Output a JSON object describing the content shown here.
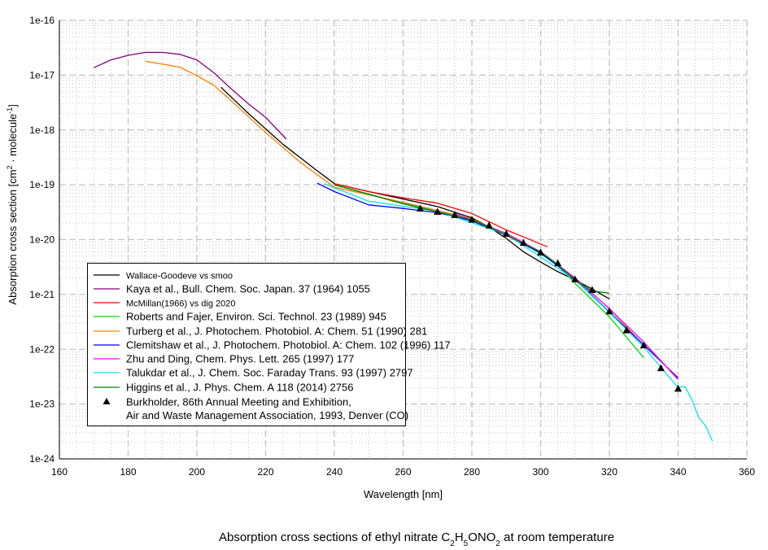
{
  "chart_data": {
    "type": "line",
    "title_parts": [
      "Absorption cross sections of ethyl nitrate C",
      "2",
      "H",
      "5",
      "ONO",
      "2",
      " at room temperature"
    ],
    "xlabel": "Wavelength [nm]",
    "ylabel_parts": [
      "Absorption cross section [cm",
      "2",
      " · molecule",
      "-1",
      "]"
    ],
    "xlim": [
      160,
      360
    ],
    "ylim": [
      1e-24,
      1e-16
    ],
    "yscale": "log",
    "x_ticks": [
      160,
      180,
      200,
      220,
      240,
      260,
      280,
      300,
      320,
      340,
      360
    ],
    "y_ticks": [
      "1e-16",
      "1e-17",
      "1e-18",
      "1e-19",
      "1e-20",
      "1e-21",
      "1e-22",
      "1e-23",
      "1e-24"
    ],
    "grid": true,
    "legend_placement": "lower-left",
    "series": [
      {
        "name": "Wallace-Goodeve vs smoo",
        "color": "#000000",
        "small": true,
        "points": [
          [
            207,
            6e-18
          ],
          [
            215,
            2e-18
          ],
          [
            225,
            5.5e-19
          ],
          [
            235,
            1.8e-19
          ],
          [
            240,
            1.05e-19
          ],
          [
            250,
            7.5e-20
          ],
          [
            260,
            5.5e-20
          ],
          [
            270,
            4e-20
          ],
          [
            280,
            2.5e-20
          ],
          [
            285,
            1.7e-20
          ],
          [
            290,
            1.05e-20
          ],
          [
            295,
            6e-21
          ],
          [
            300,
            3.9e-21
          ],
          [
            305,
            2.6e-21
          ],
          [
            310,
            1.85e-21
          ],
          [
            315,
            1.25e-21
          ],
          [
            320,
            8.3e-22
          ]
        ]
      },
      {
        "name": "Kaya et al., Bull. Chem. Soc. Japan. 37 (1964) 1055",
        "color": "#800080",
        "points": [
          [
            170,
            1.37e-17
          ],
          [
            175,
            1.9e-17
          ],
          [
            180,
            2.3e-17
          ],
          [
            185,
            2.6e-17
          ],
          [
            190,
            2.6e-17
          ],
          [
            195,
            2.4e-17
          ],
          [
            200,
            1.9e-17
          ],
          [
            205,
            1.1e-17
          ],
          [
            210,
            5.6e-18
          ],
          [
            215,
            3e-18
          ],
          [
            220,
            1.7e-18
          ],
          [
            226,
            6.8e-19
          ]
        ]
      },
      {
        "name": "McMillan(1966) vs dig 2020",
        "color": "#ff0000",
        "small": true,
        "points": [
          [
            240,
            1.05e-19
          ],
          [
            250,
            7.5e-20
          ],
          [
            260,
            5.8e-20
          ],
          [
            270,
            4.6e-20
          ],
          [
            280,
            3e-20
          ],
          [
            290,
            1.5e-20
          ],
          [
            302,
            7.4e-21
          ]
        ]
      },
      {
        "name": "Roberts and Fajer, Environ. Sci. Technol. 23 (1989) 945",
        "color": "#00dd00",
        "points": [
          [
            240,
            1e-19
          ],
          [
            260,
            4.6e-20
          ],
          [
            280,
            2.3e-20
          ],
          [
            290,
            1.3e-20
          ],
          [
            300,
            5.5e-21
          ],
          [
            305,
            3.4e-21
          ],
          [
            310,
            1.6e-21
          ],
          [
            320,
            3.9e-22
          ],
          [
            330,
            7e-23
          ]
        ]
      },
      {
        "name": "Turberg et al., J. Photochem. Photobiol. A: Chem. 51 (1990) 281",
        "color": "#ff8000",
        "points": [
          [
            185,
            1.8e-17
          ],
          [
            195,
            1.4e-17
          ],
          [
            200,
            9.8e-18
          ],
          [
            205,
            6.5e-18
          ],
          [
            210,
            3.4e-18
          ],
          [
            220,
            9e-19
          ],
          [
            230,
            2.6e-19
          ],
          [
            240,
            9e-20
          ],
          [
            260,
            4.8e-20
          ],
          [
            280,
            2.4e-20
          ],
          [
            300,
            6e-21
          ],
          [
            310,
            2e-21
          ],
          [
            320,
            5.5e-22
          ],
          [
            328,
            1.6e-22
          ]
        ]
      },
      {
        "name": "Clemitshaw et al., J. Photochem. Photobiol. A: Chem. 102 (1996) 117",
        "color": "#0000ff",
        "points": [
          [
            235,
            1.07e-19
          ],
          [
            240,
            7.5e-20
          ],
          [
            250,
            4.3e-20
          ],
          [
            260,
            3.7e-20
          ],
          [
            270,
            3.1e-20
          ],
          [
            280,
            2.2e-20
          ],
          [
            290,
            1.2e-20
          ],
          [
            300,
            5.7e-21
          ],
          [
            310,
            1.9e-21
          ],
          [
            320,
            4.8e-22
          ],
          [
            330,
            1.2e-22
          ],
          [
            340,
            3e-23
          ]
        ]
      },
      {
        "name": "Zhu and Ding, Chem. Phys. Lett. 265 (1997) 177",
        "color": "#ff00ff",
        "points": [
          [
            275,
            3e-20
          ],
          [
            290,
            1.3e-20
          ],
          [
            300,
            6e-21
          ],
          [
            310,
            2e-21
          ],
          [
            320,
            5.5e-22
          ],
          [
            330,
            1.35e-22
          ],
          [
            340,
            2.8e-23
          ]
        ]
      },
      {
        "name": "Talukdar et al., J. Chem. Soc. Faraday Trans. 93 (1997) 2797",
        "color": "#00e5ee",
        "points": [
          [
            237,
            1.05e-19
          ],
          [
            250,
            5e-20
          ],
          [
            270,
            3.3e-20
          ],
          [
            290,
            1.25e-20
          ],
          [
            310,
            1.85e-21
          ],
          [
            320,
            4.7e-22
          ],
          [
            330,
            1.1e-22
          ],
          [
            340,
            2e-23
          ],
          [
            342,
            2.1e-23
          ],
          [
            344,
            1.2e-23
          ],
          [
            346,
            5.7e-24
          ],
          [
            348,
            4e-24
          ],
          [
            350,
            2.1e-24
          ]
        ]
      },
      {
        "name": "Higgins et al., J. Phys. Chem. A 118 (2014) 2756",
        "color": "#008000",
        "points": [
          [
            240,
            1e-19
          ],
          [
            260,
            4.5e-20
          ],
          [
            280,
            2.3e-20
          ],
          [
            285,
            1.7e-20
          ],
          [
            290,
            1.2e-20
          ],
          [
            300,
            6e-21
          ],
          [
            305,
            3.5e-21
          ],
          [
            310,
            1.8e-21
          ],
          [
            315,
            1.15e-21
          ],
          [
            320,
            1.05e-21
          ]
        ]
      },
      {
        "name": "Burkholder, 86th Annual Meeting and Exhibition,",
        "name_line2": "Air and Waste Management Association, 1993, Denver (CO)",
        "color": "#000000",
        "marker": "triangle",
        "points": [
          [
            265,
            3.67e-20
          ],
          [
            270,
            3.2e-20
          ],
          [
            275,
            2.8e-20
          ],
          [
            280,
            2.3e-20
          ],
          [
            285,
            1.8e-20
          ],
          [
            290,
            1.27e-20
          ],
          [
            295,
            8.7e-21
          ],
          [
            300,
            5.8e-21
          ],
          [
            305,
            3.7e-21
          ],
          [
            310,
            1.87e-21
          ],
          [
            315,
            1.2e-21
          ],
          [
            320,
            4.9e-22
          ],
          [
            325,
            2.2e-22
          ],
          [
            330,
            1.17e-22
          ],
          [
            335,
            4.5e-23
          ],
          [
            340,
            1.9e-23
          ]
        ]
      }
    ]
  }
}
